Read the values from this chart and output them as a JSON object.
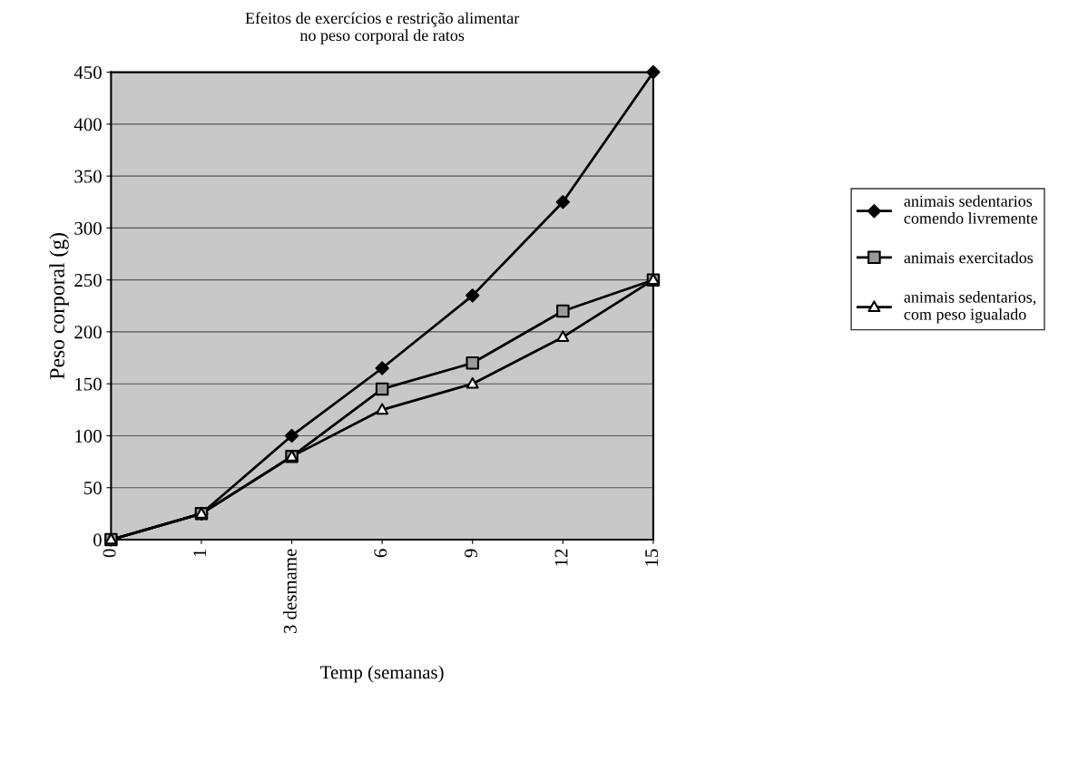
{
  "chart_data": {
    "type": "line",
    "title": "Efeitos de exercícios e restrição alimentar\nno peso corporal de ratos",
    "xlabel": "Temp (semanas)",
    "ylabel": "Peso corporal (g)",
    "categories": [
      "0",
      "1",
      "3 desmame",
      "6",
      "9",
      "12",
      "15"
    ],
    "series": [
      {
        "name": "animais sedentarios comendo livremente",
        "color": "#000000",
        "marker": "diamond",
        "values": [
          0,
          25,
          100,
          165,
          235,
          325,
          450
        ]
      },
      {
        "name": "animais exercitados",
        "color": "#000000",
        "marker": "square",
        "values": [
          0,
          25,
          80,
          145,
          170,
          220,
          250
        ]
      },
      {
        "name": "animais sedentarios, com peso igualado",
        "color": "#000000",
        "marker": "triangle",
        "values": [
          0,
          25,
          80,
          125,
          150,
          195,
          250
        ]
      }
    ],
    "ylim": [
      0,
      450
    ],
    "yticks": [
      0,
      50,
      100,
      150,
      200,
      250,
      300,
      350,
      400,
      450
    ],
    "grid": "y",
    "legend": "right",
    "line_style": "solid"
  }
}
